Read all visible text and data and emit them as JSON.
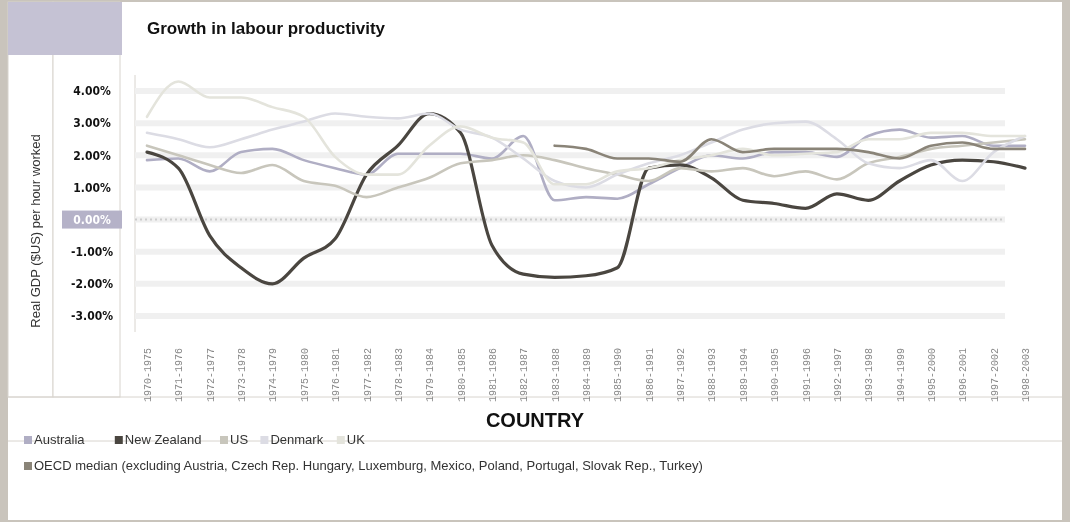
{
  "chart_data": {
    "type": "line",
    "title": "Growth in labour productivity",
    "xlabel": "COUNTRY",
    "ylabel": "Real GDP ($US) per hour worked",
    "categories": [
      "1970-1975",
      "1971-1976",
      "1972-1977",
      "1973-1978",
      "1974-1979",
      "1975-1980",
      "1976-1981",
      "1977-1982",
      "1978-1983",
      "1979-1984",
      "1980-1985",
      "1981-1986",
      "1982-1987",
      "1983-1988",
      "1984-1989",
      "1985-1990",
      "1986-1991",
      "1987-1992",
      "1988-1993",
      "1989-1994",
      "1990-1995",
      "1991-1996",
      "1992-1997",
      "1993-1998",
      "1994-1999",
      "1995-2000",
      "1996-2001",
      "1997-2002",
      "1998-2003"
    ],
    "series": [
      {
        "name": "Australia",
        "color": "#b0aec4",
        "values": [
          1.85,
          1.9,
          1.5,
          2.1,
          2.2,
          1.85,
          1.6,
          1.4,
          2.05,
          2.05,
          2.05,
          1.9,
          2.6,
          0.6,
          0.7,
          0.65,
          1.1,
          1.6,
          2.0,
          1.9,
          2.1,
          2.1,
          1.95,
          2.6,
          2.8,
          2.55,
          2.6,
          2.3,
          2.3
        ]
      },
      {
        "name": "New Zealand",
        "color": "#4a4640",
        "values": [
          2.1,
          1.6,
          -0.5,
          -1.5,
          -2.0,
          -1.2,
          -0.6,
          1.4,
          2.3,
          3.3,
          2.7,
          -0.8,
          -1.7,
          -1.8,
          -1.75,
          -1.5,
          1.6,
          1.7,
          1.3,
          0.6,
          0.5,
          0.35,
          0.8,
          0.6,
          1.2,
          1.7,
          1.85,
          1.8,
          1.6
        ]
      },
      {
        "name": "US",
        "color": "#c8c6bc",
        "values": [
          2.3,
          2.0,
          1.7,
          1.45,
          1.7,
          1.2,
          1.05,
          0.7,
          1.0,
          1.3,
          1.75,
          1.85,
          2.0,
          1.85,
          1.6,
          1.4,
          1.2,
          1.6,
          1.5,
          1.6,
          1.35,
          1.5,
          1.25,
          1.75,
          1.95,
          2.2,
          2.3,
          2.4,
          2.5
        ]
      },
      {
        "name": "Denmark",
        "color": "#dcdce4",
        "values": [
          2.7,
          2.5,
          2.25,
          2.5,
          2.8,
          3.05,
          3.3,
          3.2,
          3.15,
          3.3,
          2.8,
          2.55,
          1.9,
          1.2,
          1.0,
          1.4,
          1.75,
          2.0,
          2.4,
          2.8,
          3.0,
          3.05,
          2.5,
          1.75,
          1.6,
          1.85,
          1.2,
          2.1,
          2.6
        ]
      },
      {
        "name": "UK",
        "color": "#e4e4dc",
        "values": [
          3.2,
          4.3,
          3.8,
          3.8,
          3.5,
          3.2,
          1.95,
          1.4,
          1.4,
          2.3,
          2.9,
          2.55,
          2.4,
          1.1,
          1.1,
          1.5,
          1.6,
          1.85,
          2.0,
          2.2,
          2.0,
          2.05,
          2.1,
          2.5,
          2.5,
          2.7,
          2.7,
          2.6,
          2.6
        ]
      },
      {
        "name": "OECD median (excluding Austria, Czech Rep. Hungary, Luxemburg, Mexico, Poland, Portugal, Slovak Rep., Turkey)",
        "color": "#8a8478",
        "values": [
          null,
          null,
          null,
          null,
          null,
          null,
          null,
          null,
          null,
          null,
          null,
          null,
          null,
          2.3,
          2.2,
          1.9,
          1.9,
          1.8,
          2.5,
          2.1,
          2.2,
          2.2,
          2.2,
          2.1,
          1.9,
          2.3,
          2.4,
          2.2,
          2.2
        ]
      }
    ],
    "ylim": [
      -3.5,
      4.5
    ],
    "yticks": [
      {
        "value": -3,
        "label": "-3.00%"
      },
      {
        "value": -2,
        "label": "-2.00%"
      },
      {
        "value": -1,
        "label": "-1.00%"
      },
      {
        "value": 0,
        "label": "0.00%"
      },
      {
        "value": 1,
        "label": "1.00%"
      },
      {
        "value": 2,
        "label": "2.00%"
      },
      {
        "value": 3,
        "label": "3.00%"
      },
      {
        "value": 4,
        "label": "4.00%"
      }
    ],
    "ref_lines": [
      {
        "axis": "y",
        "value": 0,
        "color": "#cccccc",
        "line_style": "dotted"
      }
    ],
    "grid": "y",
    "legend": "bottom",
    "line_style": "solid",
    "marker": "none"
  }
}
